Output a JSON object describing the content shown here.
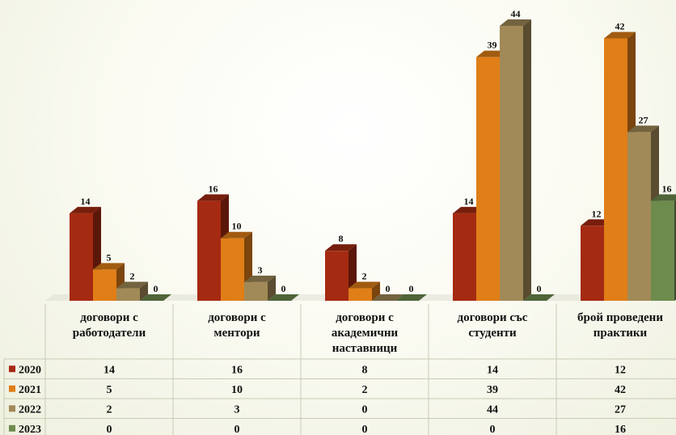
{
  "chart_data": {
    "type": "bar",
    "title": "",
    "xlabel": "",
    "ylabel": "",
    "ylim": [
      0,
      44
    ],
    "grid": false,
    "legend": "left of data table",
    "categories": [
      [
        "договори с",
        "работодатели"
      ],
      [
        "договори с",
        "ментори"
      ],
      [
        "договори с",
        "академични",
        "наставници"
      ],
      [
        "договори със",
        "студенти"
      ],
      [
        "брой проведени",
        "практики"
      ]
    ],
    "series": [
      {
        "name": "2020",
        "color": "#a52a12",
        "values": [
          14,
          16,
          8,
          14,
          12
        ]
      },
      {
        "name": "2021",
        "color": "#e07e18",
        "values": [
          5,
          10,
          2,
          39,
          42
        ]
      },
      {
        "name": "2022",
        "color": "#a18a58",
        "values": [
          2,
          3,
          0,
          44,
          27
        ]
      },
      {
        "name": "2023",
        "color": "#6e8b4e",
        "values": [
          0,
          0,
          0,
          0,
          16
        ]
      }
    ]
  }
}
